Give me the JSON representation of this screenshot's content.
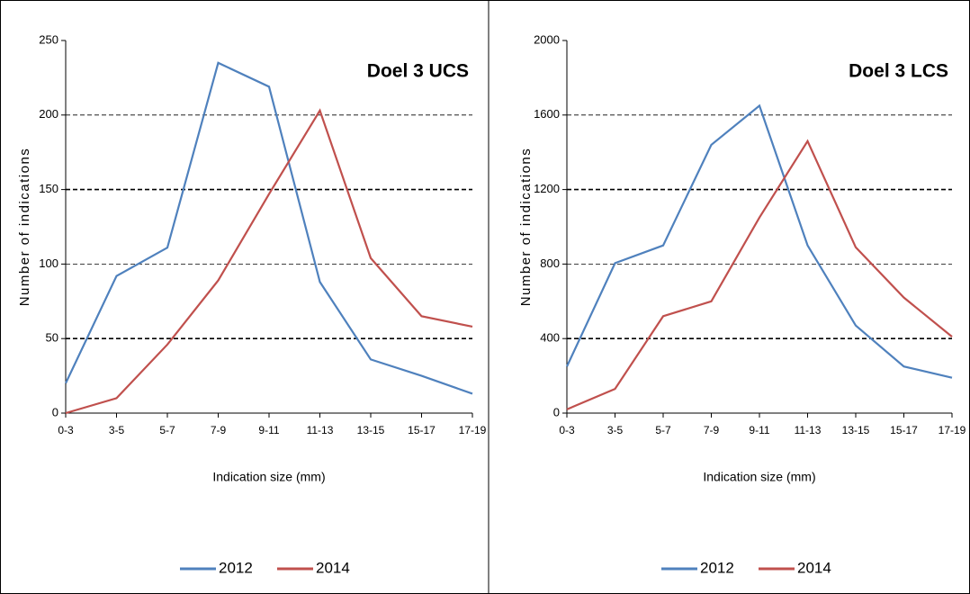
{
  "chart_data": [
    {
      "type": "line",
      "title": "Doel 3 UCS",
      "x_label": "Indication size (mm)",
      "y_label": "Number of indications",
      "categories": [
        "0-3",
        "3-5",
        "5-7",
        "7-9",
        "9-11",
        "11-13",
        "13-15",
        "15-17",
        "17-19"
      ],
      "series": [
        {
          "name": "2012",
          "color": "#4f81bd",
          "values": [
            20,
            92,
            111,
            235,
            219,
            88,
            36,
            25,
            13
          ]
        },
        {
          "name": "2014",
          "color": "#c0504d",
          "values": [
            0,
            10,
            46,
            89,
            147,
            203,
            104,
            65,
            58
          ]
        }
      ],
      "ylim": [
        0,
        250
      ],
      "yticks": [
        0,
        50,
        100,
        150,
        200,
        250
      ],
      "grid": true,
      "legend": "bottom"
    },
    {
      "type": "line",
      "title": "Doel 3 LCS",
      "x_label": "Indication size (mm)",
      "y_label": "Number of indications",
      "categories": [
        "0-3",
        "3-5",
        "5-7",
        "7-9",
        "9-11",
        "11-13",
        "13-15",
        "15-17",
        "17-19"
      ],
      "series": [
        {
          "name": "2012",
          "color": "#4f81bd",
          "values": [
            250,
            805,
            900,
            1440,
            1650,
            900,
            470,
            250,
            190
          ]
        },
        {
          "name": "2014",
          "color": "#c0504d",
          "values": [
            20,
            130,
            520,
            600,
            1050,
            1460,
            890,
            620,
            410
          ]
        }
      ],
      "ylim": [
        0,
        2000
      ],
      "yticks": [
        0,
        400,
        800,
        1200,
        1600,
        2000
      ],
      "grid": true,
      "legend": "bottom"
    }
  ]
}
